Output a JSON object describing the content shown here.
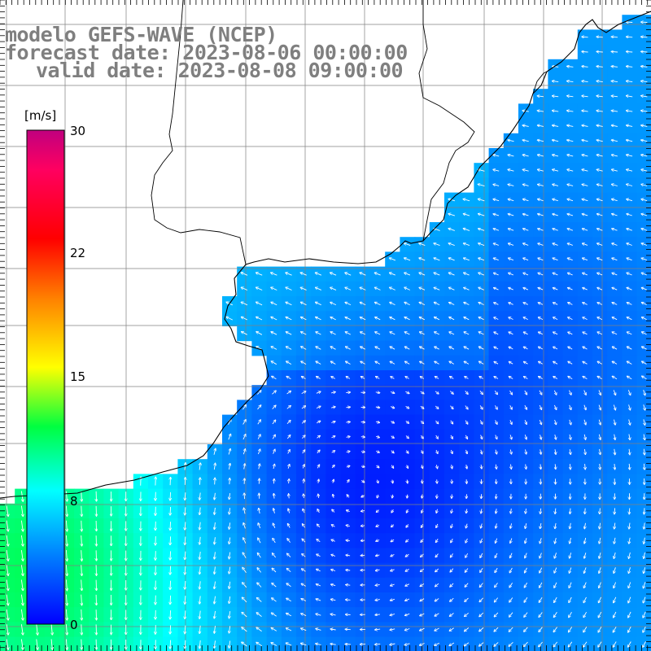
{
  "titles": {
    "model": "modelo GEFS-WAVE (NCEP)",
    "forecast": "forecast date: 2023-08-06 00:00:00",
    "valid": "valid date: 2023-08-08 09:00:00"
  },
  "colorbar": {
    "unit": "[m/s]",
    "ticks": [
      {
        "label": "30",
        "value": 30
      },
      {
        "label": "22",
        "value": 22
      },
      {
        "label": "15",
        "value": 15
      },
      {
        "label": "8",
        "value": 8
      },
      {
        "label": "0",
        "value": 0
      }
    ],
    "min": 0,
    "max": 30,
    "colors": [
      "#0000ff",
      "#0080ff",
      "#00ffff",
      "#00ff40",
      "#ffff00",
      "#ff8000",
      "#ff0000",
      "#ff0060",
      "#c0007f"
    ]
  },
  "map": {
    "land_color": "#ffffff",
    "coastline_color": "#000000",
    "grid_color": "#808080",
    "arrow_color": "#ffffff"
  }
}
